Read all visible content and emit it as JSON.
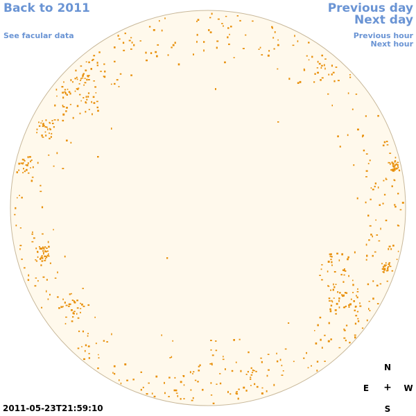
{
  "nav": {
    "back": "Back to 2011",
    "facular": "See facular data",
    "previous_day": "Previous day",
    "next_day": "Next day",
    "previous_hour": "Previous hour",
    "next_hour": "Next hour"
  },
  "timestamp": "2011-05-23T21:59:10",
  "compass": {
    "north": "N",
    "east": "E",
    "center": "+",
    "west": "W",
    "south": "S"
  },
  "colors": {
    "disk": "#fff9ec",
    "limb": "#c8b89a",
    "facula": "#e8900c",
    "link": "#6a94d4"
  }
}
